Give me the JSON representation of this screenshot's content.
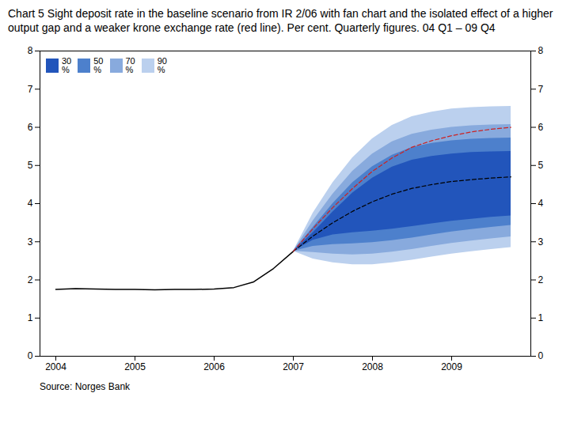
{
  "chart_data": {
    "type": "fan",
    "title": "Chart 5 Sight deposit rate in the baseline scenario from IR 2/06 with fan chart and the isolated effect of a higher output gap and a weaker krone exchange rate (red line). Per cent. Quarterly figures. 04 Q1 – 09 Q4",
    "source": "Source: Norges Bank",
    "xlim": [
      2003.8,
      2010.0
    ],
    "xticks": [
      2004,
      2005,
      2006,
      2007,
      2008,
      2009
    ],
    "ylim": [
      0,
      8
    ],
    "yticks": [
      0,
      1,
      2,
      3,
      4,
      5,
      6,
      7,
      8
    ],
    "y2lim": [
      0,
      8
    ],
    "y2ticks": [
      0,
      1,
      2,
      3,
      4,
      5,
      6,
      7,
      8
    ],
    "legend": "upper left",
    "series": [
      {
        "type": "band",
        "name": "30\n%",
        "color": "#2255bb",
        "x": [
          2007.0,
          2007.25,
          2007.5,
          2007.75,
          2008.0,
          2008.25,
          2008.5,
          2008.75,
          2009.0,
          2009.25,
          2009.5,
          2009.75
        ],
        "lower": [
          2.75,
          3.04,
          3.18,
          3.24,
          3.28,
          3.33,
          3.4,
          3.47,
          3.54,
          3.59,
          3.64,
          3.68
        ],
        "upper": [
          2.75,
          3.24,
          3.78,
          4.28,
          4.67,
          4.96,
          5.14,
          5.24,
          5.3,
          5.34,
          5.36,
          5.37
        ]
      },
      {
        "type": "band",
        "name": "50\n%",
        "color": "#4d80cc",
        "x": [
          2007.0,
          2007.25,
          2007.5,
          2007.75,
          2008.0,
          2008.25,
          2008.5,
          2008.75,
          2009.0,
          2009.25,
          2009.5,
          2009.75
        ],
        "lower": [
          2.75,
          2.88,
          2.93,
          2.95,
          2.98,
          3.03,
          3.1,
          3.18,
          3.26,
          3.32,
          3.38,
          3.43
        ],
        "upper": [
          2.75,
          3.38,
          4.0,
          4.55,
          4.97,
          5.27,
          5.47,
          5.58,
          5.65,
          5.69,
          5.71,
          5.72
        ]
      },
      {
        "type": "band",
        "name": "70\n%",
        "color": "#88aadd",
        "x": [
          2007.0,
          2007.25,
          2007.5,
          2007.75,
          2008.0,
          2008.25,
          2008.5,
          2008.75,
          2009.0,
          2009.25,
          2009.5,
          2009.75
        ],
        "lower": [
          2.75,
          2.72,
          2.68,
          2.66,
          2.68,
          2.73,
          2.8,
          2.88,
          2.96,
          3.02,
          3.08,
          3.13
        ],
        "upper": [
          2.75,
          3.55,
          4.25,
          4.85,
          5.3,
          5.62,
          5.82,
          5.93,
          6.0,
          6.04,
          6.06,
          6.07
        ]
      },
      {
        "type": "band",
        "name": "90\n%",
        "color": "#bbd0ee",
        "x": [
          2007.0,
          2007.25,
          2007.5,
          2007.75,
          2008.0,
          2008.25,
          2008.5,
          2008.75,
          2009.0,
          2009.25,
          2009.5,
          2009.75
        ],
        "lower": [
          2.75,
          2.55,
          2.45,
          2.4,
          2.4,
          2.45,
          2.52,
          2.6,
          2.68,
          2.74,
          2.8,
          2.85
        ],
        "upper": [
          2.75,
          3.75,
          4.55,
          5.2,
          5.7,
          6.05,
          6.28,
          6.4,
          6.48,
          6.52,
          6.54,
          6.55
        ]
      },
      {
        "type": "line",
        "color": "black",
        "line_style": "solid",
        "x": [
          2004.0,
          2004.25,
          2004.5,
          2004.75,
          2005.0,
          2005.25,
          2005.5,
          2005.75,
          2006.0,
          2006.25,
          2006.5,
          2006.75,
          2007.0
        ],
        "values": [
          1.75,
          1.77,
          1.76,
          1.75,
          1.75,
          1.74,
          1.75,
          1.75,
          1.76,
          1.8,
          1.95,
          2.3,
          2.75
        ]
      },
      {
        "type": "line",
        "color": "black",
        "line_style": "dashed",
        "x": [
          2007.0,
          2007.25,
          2007.5,
          2007.75,
          2008.0,
          2008.25,
          2008.5,
          2008.75,
          2009.0,
          2009.25,
          2009.5,
          2009.75
        ],
        "values": [
          2.75,
          3.15,
          3.5,
          3.8,
          4.05,
          4.25,
          4.4,
          4.5,
          4.58,
          4.63,
          4.67,
          4.7
        ]
      },
      {
        "type": "line",
        "color": "#cc2222",
        "line_style": "dashed",
        "x": [
          2007.0,
          2007.25,
          2007.5,
          2007.75,
          2008.0,
          2008.25,
          2008.5,
          2008.75,
          2009.0,
          2009.25,
          2009.5,
          2009.75
        ],
        "values": [
          2.75,
          3.35,
          3.9,
          4.4,
          4.85,
          5.2,
          5.48,
          5.65,
          5.78,
          5.88,
          5.95,
          6.0
        ]
      }
    ]
  }
}
